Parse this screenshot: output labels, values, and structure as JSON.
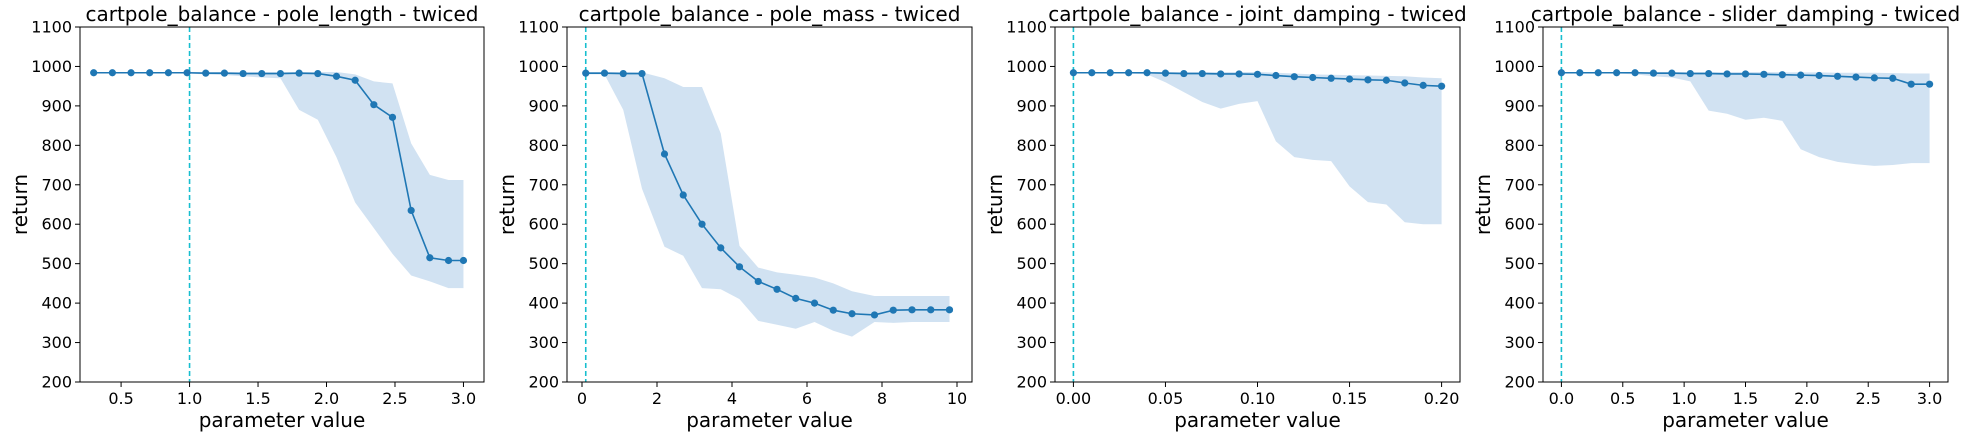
{
  "figure": {
    "background": "#ffffff"
  },
  "chart_data": [
    {
      "type": "line",
      "title": "cartpole_balance - pole_length - twiced",
      "xlabel": "parameter value",
      "ylabel": "return",
      "xlim": [
        0.2,
        3.15
      ],
      "ylim": [
        200,
        1100
      ],
      "xticks": [
        "0.5",
        "1.0",
        "1.5",
        "2.0",
        "2.5",
        "3.0"
      ],
      "xtick_values": [
        0.5,
        1.0,
        1.5,
        2.0,
        2.5,
        3.0
      ],
      "yticks": [
        "200",
        "300",
        "400",
        "500",
        "600",
        "700",
        "800",
        "900",
        "1000",
        "1100"
      ],
      "yticks_values": [
        200,
        300,
        400,
        500,
        600,
        700,
        800,
        900,
        1000,
        1100
      ],
      "reference_line": {
        "x": 1.0,
        "color": "#17becf",
        "style": "dashed"
      },
      "series": [
        {
          "color": "#1f77b4",
          "band_color": "#c6dbef",
          "x": [
            0.3,
            0.4364,
            0.5727,
            0.7091,
            0.8455,
            0.9818,
            1.1182,
            1.2545,
            1.3909,
            1.5273,
            1.6636,
            1.8,
            1.9364,
            2.0727,
            2.2091,
            2.3455,
            2.4818,
            2.6182,
            2.7545,
            2.8909,
            3.0
          ],
          "values": [
            984,
            984,
            984,
            984,
            984,
            984,
            983,
            983,
            982,
            982,
            982,
            983,
            982,
            975,
            965,
            903,
            871,
            635,
            515,
            508,
            508
          ],
          "upper": [
            986,
            986,
            986,
            986,
            986,
            986,
            986,
            986,
            986,
            986,
            986,
            986,
            986,
            986,
            980,
            962,
            957,
            805,
            725,
            712,
            712
          ],
          "lower": [
            982,
            982,
            982,
            982,
            982,
            982,
            980,
            978,
            975,
            972,
            970,
            890,
            865,
            770,
            655,
            590,
            525,
            470,
            455,
            438,
            438
          ]
        }
      ]
    },
    {
      "type": "line",
      "title": "cartpole_balance - pole_mass - twiced",
      "xlabel": "parameter value",
      "ylabel": "return",
      "xlim": [
        -0.4,
        10.4
      ],
      "ylim": [
        200,
        1100
      ],
      "xticks": [
        "0",
        "2",
        "4",
        "6",
        "8",
        "10"
      ],
      "xtick_values": [
        0,
        2,
        4,
        6,
        8,
        10
      ],
      "yticks": [
        "200",
        "300",
        "400",
        "500",
        "600",
        "700",
        "800",
        "900",
        "1000",
        "1100"
      ],
      "yticks_values": [
        200,
        300,
        400,
        500,
        600,
        700,
        800,
        900,
        1000,
        1100
      ],
      "reference_line": {
        "x": 0.1,
        "color": "#17becf",
        "style": "dashed"
      },
      "series": [
        {
          "color": "#1f77b4",
          "band_color": "#c6dbef",
          "x": [
            0.1,
            0.6,
            1.1,
            1.6,
            2.2,
            2.7,
            3.2,
            3.7,
            4.2,
            4.7,
            5.2,
            5.7,
            6.2,
            6.7,
            7.2,
            7.8,
            8.3,
            8.8,
            9.3,
            9.8
          ],
          "values": [
            983,
            983,
            982,
            982,
            778,
            674,
            600,
            540,
            492,
            455,
            435,
            412,
            400,
            382,
            373,
            370,
            382,
            383,
            383,
            383
          ],
          "upper": [
            986,
            986,
            986,
            985,
            970,
            948,
            948,
            830,
            545,
            490,
            478,
            472,
            465,
            450,
            430,
            418,
            418,
            418,
            418,
            418
          ],
          "lower": [
            980,
            980,
            890,
            690,
            543,
            520,
            438,
            435,
            410,
            355,
            345,
            335,
            352,
            330,
            315,
            352,
            350,
            352,
            352,
            352
          ]
        }
      ]
    },
    {
      "type": "line",
      "title": "cartpole_balance - joint_damping - twiced",
      "xlabel": "parameter value",
      "ylabel": "return",
      "xlim": [
        -0.01,
        0.21
      ],
      "ylim": [
        200,
        1100
      ],
      "xticks": [
        "0.00",
        "0.05",
        "0.10",
        "0.15",
        "0.20"
      ],
      "xtick_values": [
        0,
        0.05,
        0.1,
        0.15,
        0.2
      ],
      "yticks": [
        "200",
        "300",
        "400",
        "500",
        "600",
        "700",
        "800",
        "900",
        "1000",
        "1100"
      ],
      "yticks_values": [
        200,
        300,
        400,
        500,
        600,
        700,
        800,
        900,
        1000,
        1100
      ],
      "reference_line": {
        "x": 0.0,
        "color": "#17becf",
        "style": "dashed"
      },
      "series": [
        {
          "color": "#1f77b4",
          "band_color": "#c6dbef",
          "x": [
            0.0,
            0.01,
            0.02,
            0.03,
            0.04,
            0.05,
            0.06,
            0.07,
            0.08,
            0.09,
            0.1,
            0.11,
            0.12,
            0.13,
            0.14,
            0.15,
            0.16,
            0.17,
            0.18,
            0.19,
            0.2
          ],
          "values": [
            984,
            984,
            984,
            984,
            984,
            983,
            982,
            982,
            981,
            981,
            980,
            977,
            974,
            972,
            970,
            968,
            966,
            965,
            958,
            952,
            950
          ],
          "upper": [
            986,
            986,
            986,
            986,
            986,
            986,
            986,
            986,
            986,
            986,
            986,
            984,
            982,
            980,
            979,
            978,
            977,
            976,
            975,
            972,
            970
          ],
          "lower": [
            982,
            982,
            982,
            982,
            980,
            960,
            935,
            910,
            893,
            905,
            912,
            810,
            770,
            763,
            760,
            696,
            656,
            650,
            605,
            600,
            600
          ]
        }
      ]
    },
    {
      "type": "line",
      "title": "cartpole_balance - slider_damping - twiced",
      "xlabel": "parameter value",
      "ylabel": "return",
      "xlim": [
        -0.15,
        3.15
      ],
      "ylim": [
        200,
        1100
      ],
      "xticks": [
        "0.0",
        "0.5",
        "1.0",
        "1.5",
        "2.0",
        "2.5",
        "3.0"
      ],
      "xtick_values": [
        0,
        0.5,
        1.0,
        1.5,
        2.0,
        2.5,
        3.0
      ],
      "yticks": [
        "200",
        "300",
        "400",
        "500",
        "600",
        "700",
        "800",
        "900",
        "1000",
        "1100"
      ],
      "yticks_values": [
        200,
        300,
        400,
        500,
        600,
        700,
        800,
        900,
        1000,
        1100
      ],
      "reference_line": {
        "x": 0.0,
        "color": "#17becf",
        "style": "dashed"
      },
      "series": [
        {
          "color": "#1f77b4",
          "band_color": "#c6dbef",
          "x": [
            0.0,
            0.15,
            0.3,
            0.45,
            0.6,
            0.75,
            0.9,
            1.05,
            1.2,
            1.35,
            1.5,
            1.65,
            1.8,
            1.95,
            2.1,
            2.25,
            2.4,
            2.55,
            2.7,
            2.85,
            3.0
          ],
          "values": [
            984,
            984,
            984,
            984,
            984,
            983,
            983,
            982,
            982,
            981,
            981,
            980,
            979,
            978,
            977,
            975,
            973,
            971,
            970,
            955,
            955
          ],
          "upper": [
            986,
            986,
            986,
            986,
            986,
            986,
            986,
            986,
            986,
            986,
            986,
            986,
            985,
            985,
            985,
            984,
            984,
            984,
            983,
            982,
            982
          ],
          "lower": [
            982,
            982,
            982,
            982,
            980,
            975,
            972,
            962,
            888,
            880,
            865,
            870,
            862,
            790,
            770,
            758,
            752,
            748,
            750,
            755,
            755
          ]
        }
      ]
    }
  ]
}
